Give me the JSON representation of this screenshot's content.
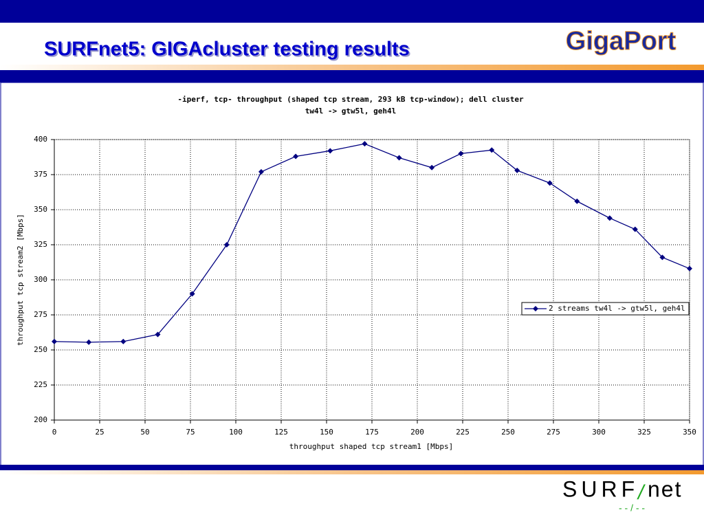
{
  "slide_title": "SURFnet5: GIGAcluster testing results",
  "logo_top": "GigaPort",
  "logo_bottom": {
    "left": "SURF",
    "right": "net"
  },
  "chart_data": {
    "type": "line",
    "title": "-iperf, tcp- throughput (shaped tcp stream, 293 kB tcp-window); dell cluster",
    "subtitle": "tw4l -> gtw5l, geh4l",
    "x_label": "throughput shaped tcp stream1 [Mbps]",
    "y_label": "throughput tcp stream2 [Mbps]",
    "x": [
      0,
      19,
      38,
      57,
      76,
      95,
      114,
      133,
      152,
      171,
      190,
      208,
      224,
      241,
      255,
      273,
      288,
      306,
      320,
      335,
      350
    ],
    "series": [
      {
        "name": "2 streams tw4l -> gtw5l, geh4l",
        "color": "#000080",
        "values": [
          256,
          255.5,
          256,
          261,
          290,
          325,
          377,
          388,
          392,
          397,
          387,
          380,
          390,
          392.5,
          378,
          369,
          356,
          344,
          336,
          316,
          308
        ]
      }
    ],
    "xlim": [
      0,
      350
    ],
    "xticks": [
      0,
      25,
      50,
      75,
      100,
      125,
      150,
      175,
      200,
      225,
      250,
      275,
      300,
      325,
      350
    ],
    "ylim": [
      200,
      400
    ],
    "yticks": [
      200,
      225,
      250,
      275,
      300,
      325,
      350,
      375,
      400
    ],
    "grid": true,
    "legend": "right"
  }
}
